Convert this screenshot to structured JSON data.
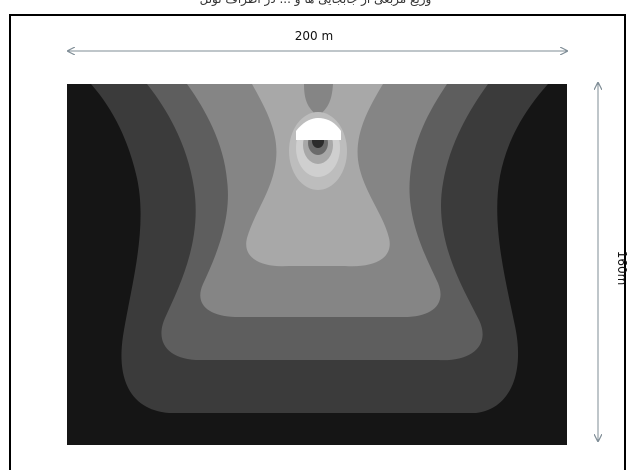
{
  "header": {
    "caption_text": "وزیع مربعی از جابجایی ها و ... در اطراف تونل"
  },
  "diagram": {
    "width_label": "200 m",
    "height_label": "160m",
    "colors": {
      "frame": "#000000",
      "dimension_line": "#7f8d96",
      "background_dark": "#151515",
      "band_1": "#3b3b3b",
      "band_2": "#5e5e5e",
      "band_3": "#858585",
      "band_4": "#a8a8a8",
      "band_5": "#cfcfcf",
      "tunnel_opening": "#ffffff"
    }
  }
}
